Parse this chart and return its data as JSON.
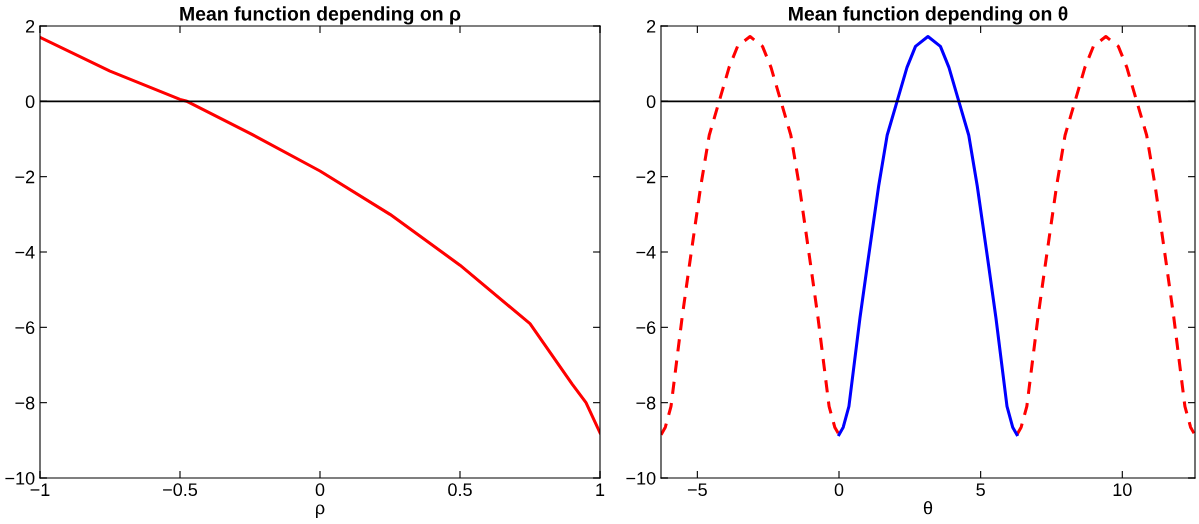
{
  "chart_data": [
    {
      "type": "line",
      "title": "Mean function depending on ρ",
      "xlabel": "ρ",
      "series": [
        {
          "color": "#ff0000",
          "line_style": "solid",
          "x": [
            -1,
            -0.75,
            -0.5,
            -0.475,
            -0.25,
            0,
            0.25,
            0.5,
            0.75,
            0.9,
            0.95,
            1
          ],
          "values": [
            1.7,
            0.8,
            0.05,
            0,
            -0.85,
            -1.85,
            -3.0,
            -4.35,
            -5.9,
            -7.5,
            -8.0,
            -8.8
          ]
        }
      ],
      "xlim": [
        -1,
        1
      ],
      "ylim": [
        -10,
        2
      ],
      "xticks": [
        {
          "value": -1,
          "label": "−1"
        },
        {
          "value": -0.5,
          "label": "−0.5"
        },
        0,
        0.5,
        1
      ],
      "yticks": [
        {
          "value": -10,
          "label": "−10"
        },
        {
          "value": -8,
          "label": "−8"
        },
        {
          "value": -6,
          "label": "−6"
        },
        {
          "value": -4,
          "label": "−4"
        },
        {
          "value": -2,
          "label": "−2"
        },
        0,
        2
      ],
      "ref_lines": [
        {
          "axis": "y",
          "value": 0,
          "color": "#000000"
        }
      ],
      "grid": false,
      "legend": false
    },
    {
      "type": "line",
      "title": "Mean function depending on θ",
      "xlabel": "θ",
      "series": [
        {
          "color": "#ff0000",
          "line_style": "dashed",
          "x": [
            -6.28,
            -6.13,
            -5.93,
            -5.54,
            -5.28,
            -4.88,
            -4.58,
            -4.23,
            -3.88,
            -3.58,
            -3.14,
            -2.7,
            -2.4,
            -2.05,
            -1.7,
            -1.4,
            -1.0,
            -0.74,
            -0.35,
            -0.15,
            0,
            3.14,
            6.28,
            6.43,
            6.63,
            7.02,
            7.28,
            7.68,
            7.98,
            8.33,
            8.68,
            8.98,
            9.42,
            9.86,
            10.16,
            10.51,
            10.86,
            11.16,
            11.56,
            11.82,
            12.21,
            12.41,
            12.56
          ],
          "values": [
            -8.85,
            -8.65,
            -8.1,
            -5.75,
            -4.35,
            -2.25,
            -0.9,
            0,
            0.9,
            1.46,
            1.72,
            1.46,
            0.9,
            0,
            -0.9,
            -2.25,
            -4.35,
            -5.75,
            -8.1,
            -8.65,
            -8.85,
            null,
            -8.85,
            -8.65,
            -8.1,
            -5.75,
            -4.35,
            -2.25,
            -0.9,
            0,
            0.9,
            1.46,
            1.72,
            1.46,
            0.9,
            0,
            -0.9,
            -2.25,
            -4.35,
            -5.75,
            -8.1,
            -8.65,
            -8.85
          ]
        },
        {
          "color": "#0000ff",
          "line_style": "solid",
          "x": [
            0,
            0.15,
            0.35,
            0.74,
            1.0,
            1.4,
            1.7,
            2.05,
            2.4,
            2.7,
            3.14,
            3.58,
            3.88,
            4.23,
            4.58,
            4.88,
            5.28,
            5.54,
            5.93,
            6.13,
            6.28
          ],
          "values": [
            -8.85,
            -8.65,
            -8.1,
            -5.75,
            -4.35,
            -2.25,
            -0.9,
            0,
            0.9,
            1.46,
            1.72,
            1.46,
            0.9,
            0,
            -0.9,
            -2.25,
            -4.35,
            -5.75,
            -8.1,
            -8.65,
            -8.85
          ]
        }
      ],
      "xlim": [
        -6.283,
        12.566
      ],
      "ylim": [
        -10,
        2
      ],
      "xticks": [
        {
          "value": -5,
          "label": "−5"
        },
        0,
        5,
        10
      ],
      "yticks": [
        {
          "value": -10,
          "label": "−10"
        },
        {
          "value": -8,
          "label": "−8"
        },
        {
          "value": -6,
          "label": "−6"
        },
        {
          "value": -4,
          "label": "−4"
        },
        {
          "value": -2,
          "label": "−2"
        },
        0,
        2
      ],
      "ref_lines": [
        {
          "axis": "y",
          "value": 0,
          "color": "#000000"
        }
      ],
      "grid": false,
      "legend": false
    }
  ]
}
